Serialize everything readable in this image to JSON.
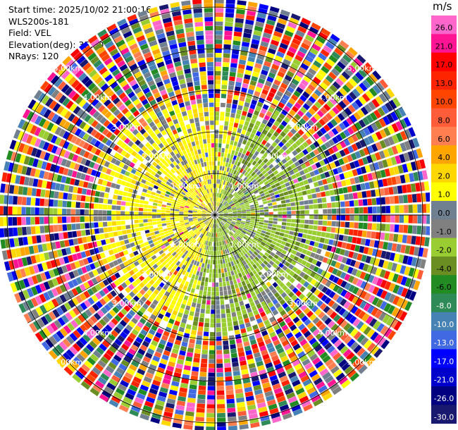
{
  "header": {
    "start_time": "Start time: 2025/10/02 21:00:16",
    "instrument": "WLS200s-181",
    "field": "Field: VEL",
    "elevation": "Elevation(deg): 35.00",
    "nrays": "NRays: 120"
  },
  "chart_data": {
    "type": "heatmap",
    "projection": "polar-ppi",
    "field": "VEL",
    "units": "m/s",
    "elevation_deg": 35.0,
    "n_rays": 120,
    "range_rings_km": [
      1.0,
      2.0,
      3.0,
      4.0,
      5.0
    ],
    "ring_labels": [
      "1.00km",
      "2.00km",
      "3.00km",
      "4.00km",
      "5.00km"
    ],
    "max_range_km": 5.2,
    "colorbar": {
      "title": "m/s",
      "ticks": [
        "26.0",
        "21.0",
        "17.0",
        "13.0",
        "10.0",
        "8.0",
        "6.0",
        "4.0",
        "2.0",
        "1.0",
        "0.0",
        "-1.0",
        "-2.0",
        "-4.0",
        "-6.0",
        "-8.0",
        "-10.0",
        "-13.0",
        "-17.0",
        "-21.0",
        "-26.0",
        "-30.0"
      ],
      "colors": [
        "#ff66cc",
        "#ff1493",
        "#ff0000",
        "#ff2400",
        "#ff4500",
        "#ff5c3a",
        "#ff7f50",
        "#ffa500",
        "#ffd700",
        "#ffff00",
        "#708090",
        "#808080",
        "#9acd32",
        "#6b8e23",
        "#228b22",
        "#2e8b57",
        "#4682b4",
        "#4169e1",
        "#0000ff",
        "#0000cd",
        "#000080",
        "#191970"
      ]
    },
    "grid": true
  }
}
